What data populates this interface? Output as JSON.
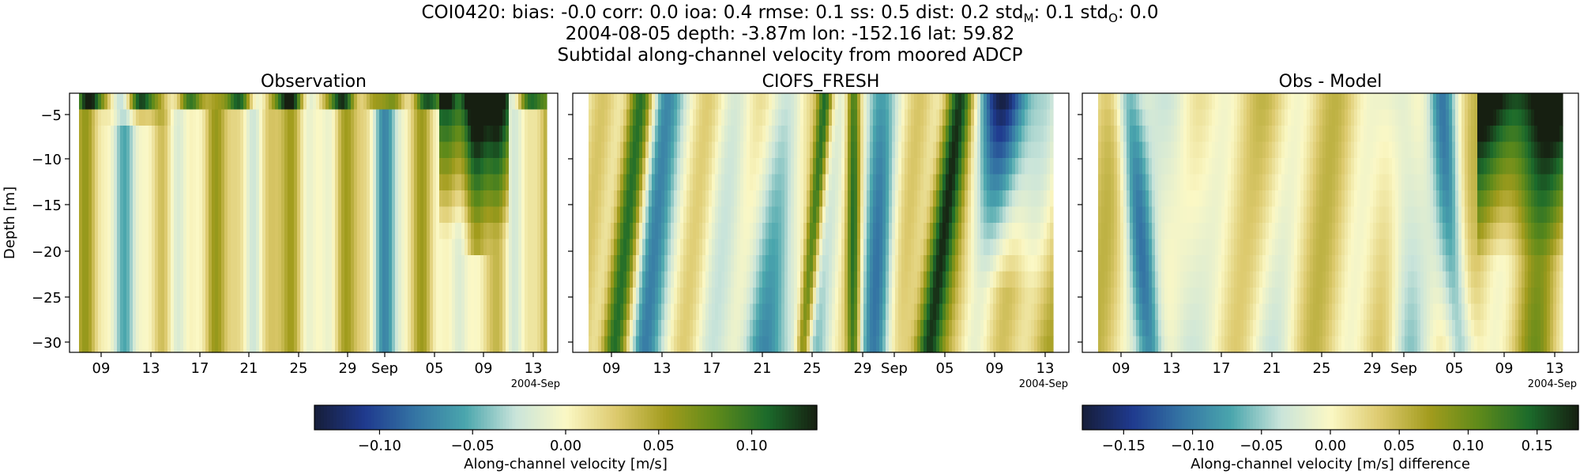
{
  "figure": {
    "title_stats_line": {
      "prefix": "COI0420: bias: -0.0  corr: 0.0  ioa: 0.4  rmse: 0.1  ss: 0.5  dist: 0.2  std",
      "sub_m": "M",
      "mid": ": 0.1  std",
      "sub_o": "O",
      "suffix": ": 0.0"
    },
    "title_line2": "2004-08-05 depth: -3.87m lon: -152.16 lat: 59.82",
    "title_line3": "Subtidal along-channel velocity from moored ADCP"
  },
  "chart_data": [
    {
      "type": "heatmap",
      "title": "Observation",
      "ylabel": "Depth [m]",
      "xlabel": "",
      "ylim": [
        -31,
        -2.5
      ],
      "y_ticks": [
        -5,
        -10,
        -15,
        -20,
        -25,
        -30
      ],
      "x_tick_labels": [
        "09",
        "13",
        "17",
        "21",
        "25",
        "29",
        "Sep",
        "05",
        "09",
        "13"
      ],
      "x_offset_label": "2004-Sep",
      "x_range_dates": [
        "2004-08-05",
        "2004-09-14"
      ],
      "colormap": "delta",
      "color_range": [
        -0.135,
        0.135
      ],
      "description_values": "banded along-channel velocity, mostly weakly positive with strong positive core at surface/top and early September"
    },
    {
      "type": "heatmap",
      "title": "CIOFS_FRESH",
      "ylabel": "",
      "xlabel": "",
      "ylim": [
        -31,
        -2.5
      ],
      "y_ticks": [
        -5,
        -10,
        -15,
        -20,
        -25,
        -30
      ],
      "x_tick_labels": [
        "09",
        "13",
        "17",
        "21",
        "25",
        "29",
        "Sep",
        "05",
        "09",
        "13"
      ],
      "x_offset_label": "2004-Sep",
      "colormap": "delta",
      "color_range": [
        -0.135,
        0.135
      ]
    },
    {
      "type": "heatmap",
      "title": "Obs - Model",
      "ylabel": "",
      "xlabel": "",
      "ylim": [
        -31,
        -2.5
      ],
      "y_ticks": [
        -5,
        -10,
        -15,
        -20,
        -25,
        -30
      ],
      "x_tick_labels": [
        "09",
        "13",
        "17",
        "21",
        "25",
        "29",
        "Sep",
        "05",
        "09",
        "13"
      ],
      "x_offset_label": "2004-Sep",
      "colormap": "delta",
      "color_range": [
        -0.18,
        0.18
      ]
    }
  ],
  "colorbars": [
    {
      "label": "Along-channel velocity [m/s]",
      "range": [
        -0.135,
        0.135
      ],
      "ticks": [
        -0.1,
        -0.05,
        0.0,
        0.05,
        0.1
      ],
      "tick_labels": [
        "−0.10",
        "−0.05",
        "0.00",
        "0.05",
        "0.10"
      ]
    },
    {
      "label": "Along-channel velocity [m/s] difference",
      "range": [
        -0.18,
        0.18
      ],
      "ticks": [
        -0.15,
        -0.1,
        -0.05,
        0.0,
        0.05,
        0.1,
        0.15
      ],
      "tick_labels": [
        "−0.15",
        "−0.10",
        "−0.05",
        "0.00",
        "0.05",
        "0.10",
        "0.15"
      ]
    }
  ],
  "y_tick_labels": [
    "−5",
    "−10",
    "−15",
    "−20",
    "−25",
    "−30"
  ],
  "palette": [
    "#161d39",
    "#1f3a8e",
    "#3474a4",
    "#4aa6ad",
    "#c9e4da",
    "#fbf8c5",
    "#ddca6e",
    "#a29c1d",
    "#5e8a1a",
    "#1c6b2b",
    "#161f11"
  ]
}
